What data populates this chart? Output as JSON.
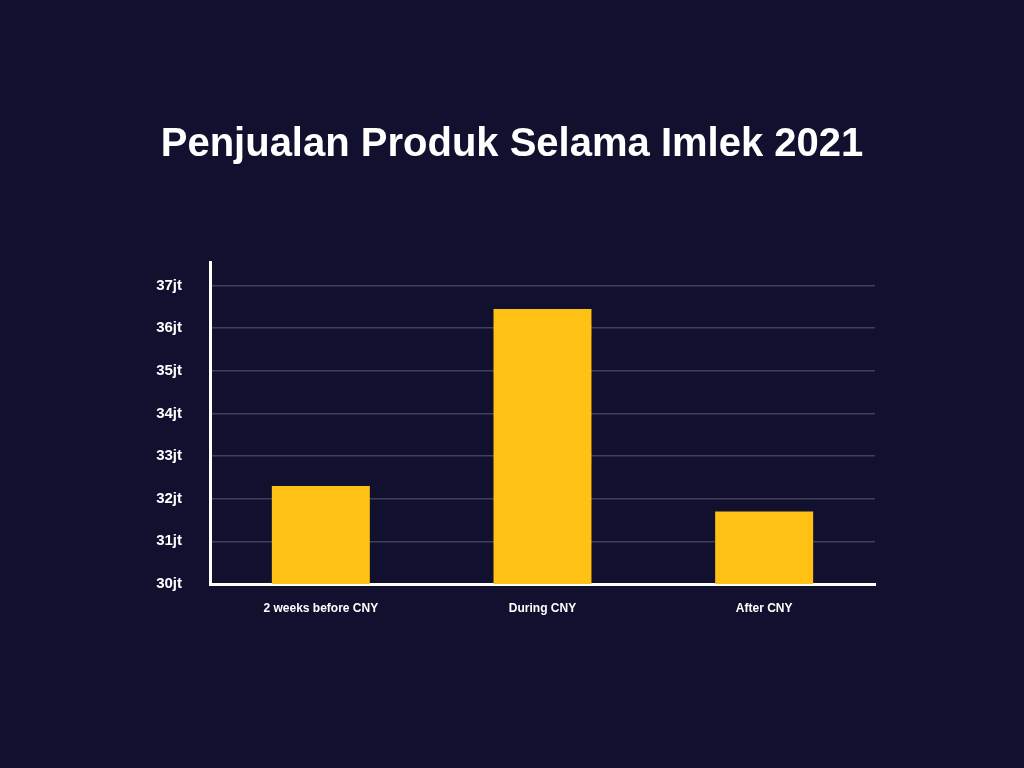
{
  "chart_data": {
    "type": "bar",
    "title": "Penjualan Produk Selama Imlek 2021",
    "categories": [
      "2 weeks before CNY",
      "During CNY",
      "After CNY"
    ],
    "values": [
      32.3,
      36.45,
      31.7
    ],
    "color": "#ffc214",
    "ylim": [
      30,
      37.55
    ],
    "yticks": [
      {
        "value": 30,
        "label": "30jt"
      },
      {
        "value": 31,
        "label": "31jt"
      },
      {
        "value": 32,
        "label": "32jt"
      },
      {
        "value": 33,
        "label": "33jt"
      },
      {
        "value": 34,
        "label": "34jt"
      },
      {
        "value": 35,
        "label": "35jt"
      },
      {
        "value": 36,
        "label": "36jt"
      },
      {
        "value": 37,
        "label": "37jt"
      }
    ],
    "grid": "y"
  }
}
